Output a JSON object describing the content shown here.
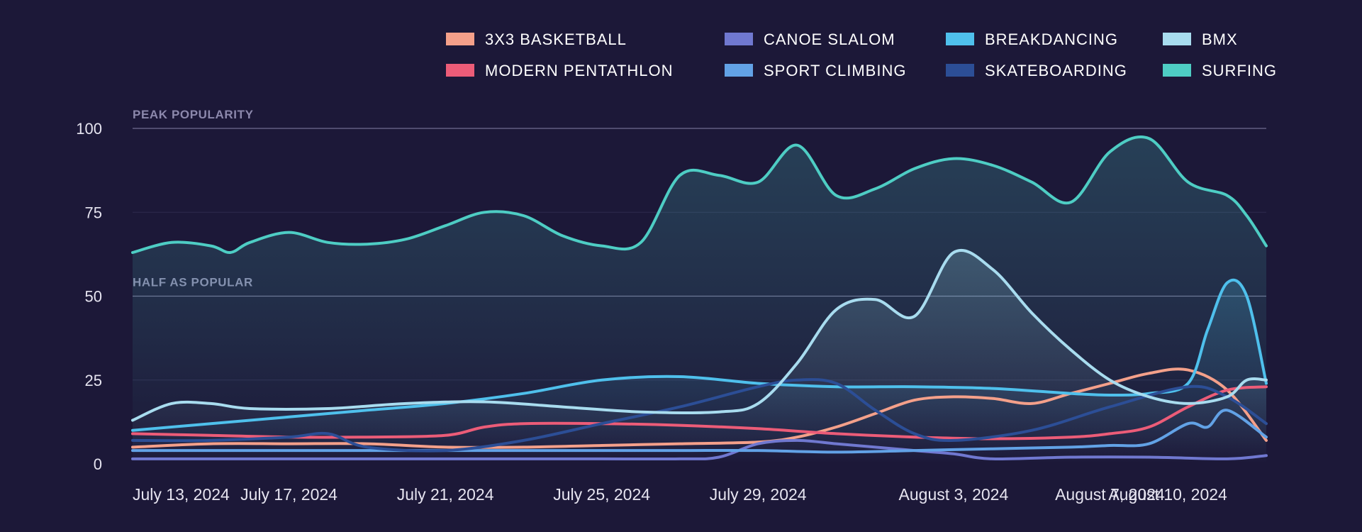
{
  "chart_data": {
    "type": "line",
    "title": "",
    "xlabel": "",
    "ylabel": "",
    "ylim": [
      0,
      100
    ],
    "yticks": [
      "0",
      "25",
      "50",
      "75",
      "100"
    ],
    "xlim": [
      "2024-07-13",
      "2024-08-11"
    ],
    "xticks": [
      {
        "date": "2024-07-13",
        "label": "July 13, 2024"
      },
      {
        "date": "2024-07-17",
        "label": "July 17, 2024"
      },
      {
        "date": "2024-07-21",
        "label": "July 21, 2024"
      },
      {
        "date": "2024-07-25",
        "label": "July 25, 2024"
      },
      {
        "date": "2024-07-29",
        "label": "July 29, 2024"
      },
      {
        "date": "2024-08-03",
        "label": "August 3, 2024"
      },
      {
        "date": "2024-08-07",
        "label": "August 7, 2024"
      },
      {
        "date": "2024-08-10",
        "label": "August 10, 2024"
      }
    ],
    "grid": true,
    "reference_lines": [
      {
        "value": 100,
        "label": "PEAK POPULARITY"
      },
      {
        "value": 50,
        "label": "HALF AS POPULAR"
      }
    ],
    "legend_position": "top-right",
    "series": [
      {
        "name": "3X3 BASKETBALL",
        "color": "#f4a08a",
        "area": false,
        "points": [
          [
            "2024-07-13",
            5
          ],
          [
            "2024-07-15",
            6
          ],
          [
            "2024-07-17",
            6
          ],
          [
            "2024-07-19",
            6
          ],
          [
            "2024-07-21",
            5
          ],
          [
            "2024-07-23",
            5
          ],
          [
            "2024-07-25",
            5.5
          ],
          [
            "2024-07-27",
            6
          ],
          [
            "2024-07-29",
            6.5
          ],
          [
            "2024-07-30",
            8
          ],
          [
            "2024-07-31",
            11
          ],
          [
            "2024-08-01",
            15
          ],
          [
            "2024-08-02",
            19
          ],
          [
            "2024-08-03",
            20
          ],
          [
            "2024-08-04",
            19.5
          ],
          [
            "2024-08-05",
            18
          ],
          [
            "2024-08-06",
            21
          ],
          [
            "2024-08-07",
            24
          ],
          [
            "2024-08-08",
            27
          ],
          [
            "2024-08-09",
            28
          ],
          [
            "2024-08-10",
            22
          ],
          [
            "2024-08-11",
            7
          ]
        ]
      },
      {
        "name": "MODERN PENTATHLON",
        "color": "#ec5c78",
        "area": false,
        "points": [
          [
            "2024-07-13",
            9
          ],
          [
            "2024-07-15",
            8.5
          ],
          [
            "2024-07-17",
            8
          ],
          [
            "2024-07-19",
            8
          ],
          [
            "2024-07-21",
            8.5
          ],
          [
            "2024-07-22",
            11
          ],
          [
            "2024-07-23",
            12
          ],
          [
            "2024-07-25",
            12
          ],
          [
            "2024-07-27",
            11.5
          ],
          [
            "2024-07-29",
            10.5
          ],
          [
            "2024-07-31",
            9
          ],
          [
            "2024-08-02",
            8
          ],
          [
            "2024-08-04",
            7.5
          ],
          [
            "2024-08-06",
            8
          ],
          [
            "2024-08-07",
            9
          ],
          [
            "2024-08-08",
            11
          ],
          [
            "2024-08-09",
            17
          ],
          [
            "2024-08-10",
            22
          ],
          [
            "2024-08-11",
            23
          ]
        ]
      },
      {
        "name": "CANOE SLALOM",
        "color": "#7078d0",
        "area": false,
        "points": [
          [
            "2024-07-13",
            1.5
          ],
          [
            "2024-07-15",
            1.5
          ],
          [
            "2024-07-17",
            1.5
          ],
          [
            "2024-07-19",
            1.5
          ],
          [
            "2024-07-21",
            1.5
          ],
          [
            "2024-07-23",
            1.5
          ],
          [
            "2024-07-25",
            1.5
          ],
          [
            "2024-07-27",
            1.5
          ],
          [
            "2024-07-28",
            2
          ],
          [
            "2024-07-29",
            6
          ],
          [
            "2024-07-30",
            7
          ],
          [
            "2024-07-31",
            6
          ],
          [
            "2024-08-01",
            5
          ],
          [
            "2024-08-02",
            4
          ],
          [
            "2024-08-03",
            3
          ],
          [
            "2024-08-04",
            1.5
          ],
          [
            "2024-08-06",
            2
          ],
          [
            "2024-08-08",
            2
          ],
          [
            "2024-08-10",
            1.5
          ],
          [
            "2024-08-11",
            2.5
          ]
        ]
      },
      {
        "name": "SPORT CLIMBING",
        "color": "#62a2e6",
        "area": false,
        "points": [
          [
            "2024-07-13",
            4
          ],
          [
            "2024-07-15",
            4
          ],
          [
            "2024-07-17",
            4
          ],
          [
            "2024-07-19",
            4
          ],
          [
            "2024-07-21",
            4
          ],
          [
            "2024-07-23",
            4
          ],
          [
            "2024-07-25",
            4
          ],
          [
            "2024-07-27",
            4
          ],
          [
            "2024-07-29",
            4
          ],
          [
            "2024-07-31",
            3.5
          ],
          [
            "2024-08-02",
            4
          ],
          [
            "2024-08-04",
            4.5
          ],
          [
            "2024-08-06",
            5
          ],
          [
            "2024-08-07",
            5.5
          ],
          [
            "2024-08-08",
            6
          ],
          [
            "2024-08-09",
            12
          ],
          [
            "2024-08-09T12",
            11
          ],
          [
            "2024-08-10",
            16
          ],
          [
            "2024-08-11",
            8
          ]
        ]
      },
      {
        "name": "BREAKDANCING",
        "color": "#4fc0ec",
        "area": true,
        "points": [
          [
            "2024-07-13",
            10
          ],
          [
            "2024-07-15",
            12
          ],
          [
            "2024-07-17",
            14
          ],
          [
            "2024-07-19",
            16
          ],
          [
            "2024-07-21",
            18
          ],
          [
            "2024-07-23",
            21
          ],
          [
            "2024-07-25",
            25
          ],
          [
            "2024-07-27",
            26
          ],
          [
            "2024-07-29",
            24
          ],
          [
            "2024-07-31",
            23
          ],
          [
            "2024-08-02",
            23
          ],
          [
            "2024-08-04",
            22.5
          ],
          [
            "2024-08-06",
            21
          ],
          [
            "2024-08-07",
            20.5
          ],
          [
            "2024-08-08",
            21
          ],
          [
            "2024-08-09",
            24
          ],
          [
            "2024-08-09T12",
            40
          ],
          [
            "2024-08-10",
            54
          ],
          [
            "2024-08-10T12",
            50
          ],
          [
            "2024-08-11",
            24
          ]
        ]
      },
      {
        "name": "SKATEBOARDING",
        "color": "#2c4e96",
        "area": false,
        "points": [
          [
            "2024-07-13",
            7
          ],
          [
            "2024-07-15",
            7
          ],
          [
            "2024-07-17",
            8
          ],
          [
            "2024-07-18",
            9
          ],
          [
            "2024-07-19",
            5
          ],
          [
            "2024-07-21",
            4
          ],
          [
            "2024-07-23",
            7
          ],
          [
            "2024-07-25",
            12
          ],
          [
            "2024-07-27",
            17
          ],
          [
            "2024-07-29",
            23
          ],
          [
            "2024-07-30",
            25
          ],
          [
            "2024-07-31",
            24
          ],
          [
            "2024-08-01",
            16
          ],
          [
            "2024-08-02",
            9
          ],
          [
            "2024-08-03",
            7
          ],
          [
            "2024-08-05",
            10
          ],
          [
            "2024-08-07",
            17
          ],
          [
            "2024-08-09",
            23
          ],
          [
            "2024-08-10",
            20
          ],
          [
            "2024-08-11",
            12
          ]
        ]
      },
      {
        "name": "BMX",
        "color": "#a8dcef",
        "area": true,
        "points": [
          [
            "2024-07-13",
            13
          ],
          [
            "2024-07-14",
            18
          ],
          [
            "2024-07-15",
            18
          ],
          [
            "2024-07-16",
            16.5
          ],
          [
            "2024-07-18",
            16.5
          ],
          [
            "2024-07-20",
            18
          ],
          [
            "2024-07-22",
            18.5
          ],
          [
            "2024-07-24",
            17
          ],
          [
            "2024-07-26",
            15.5
          ],
          [
            "2024-07-28",
            15.5
          ],
          [
            "2024-07-29",
            18
          ],
          [
            "2024-07-30",
            30
          ],
          [
            "2024-07-31",
            46
          ],
          [
            "2024-08-01",
            49
          ],
          [
            "2024-08-02",
            44
          ],
          [
            "2024-08-03",
            63
          ],
          [
            "2024-08-04",
            58
          ],
          [
            "2024-08-05",
            45
          ],
          [
            "2024-08-06",
            34
          ],
          [
            "2024-08-07",
            25
          ],
          [
            "2024-08-08",
            20
          ],
          [
            "2024-08-09",
            18
          ],
          [
            "2024-08-10",
            20
          ],
          [
            "2024-08-10T12",
            25
          ],
          [
            "2024-08-11",
            25
          ]
        ]
      },
      {
        "name": "SURFING",
        "color": "#4ecdc4",
        "area": true,
        "points": [
          [
            "2024-07-13",
            63
          ],
          [
            "2024-07-14",
            66
          ],
          [
            "2024-07-15",
            65
          ],
          [
            "2024-07-15T12",
            63
          ],
          [
            "2024-07-16",
            66
          ],
          [
            "2024-07-17",
            69
          ],
          [
            "2024-07-18",
            66
          ],
          [
            "2024-07-19",
            65.5
          ],
          [
            "2024-07-20",
            67
          ],
          [
            "2024-07-21",
            71
          ],
          [
            "2024-07-22",
            75
          ],
          [
            "2024-07-23",
            74
          ],
          [
            "2024-07-24",
            68
          ],
          [
            "2024-07-25",
            65
          ],
          [
            "2024-07-26",
            66
          ],
          [
            "2024-07-27",
            86
          ],
          [
            "2024-07-28",
            86
          ],
          [
            "2024-07-29",
            84
          ],
          [
            "2024-07-30",
            95
          ],
          [
            "2024-07-31",
            80
          ],
          [
            "2024-08-01",
            82
          ],
          [
            "2024-08-02",
            88
          ],
          [
            "2024-08-03",
            91
          ],
          [
            "2024-08-04",
            89
          ],
          [
            "2024-08-05",
            84
          ],
          [
            "2024-08-06",
            78
          ],
          [
            "2024-08-07",
            93
          ],
          [
            "2024-08-08",
            97
          ],
          [
            "2024-08-09",
            84
          ],
          [
            "2024-08-10",
            80
          ],
          [
            "2024-08-10T12",
            74
          ],
          [
            "2024-08-11",
            65
          ]
        ]
      }
    ]
  }
}
